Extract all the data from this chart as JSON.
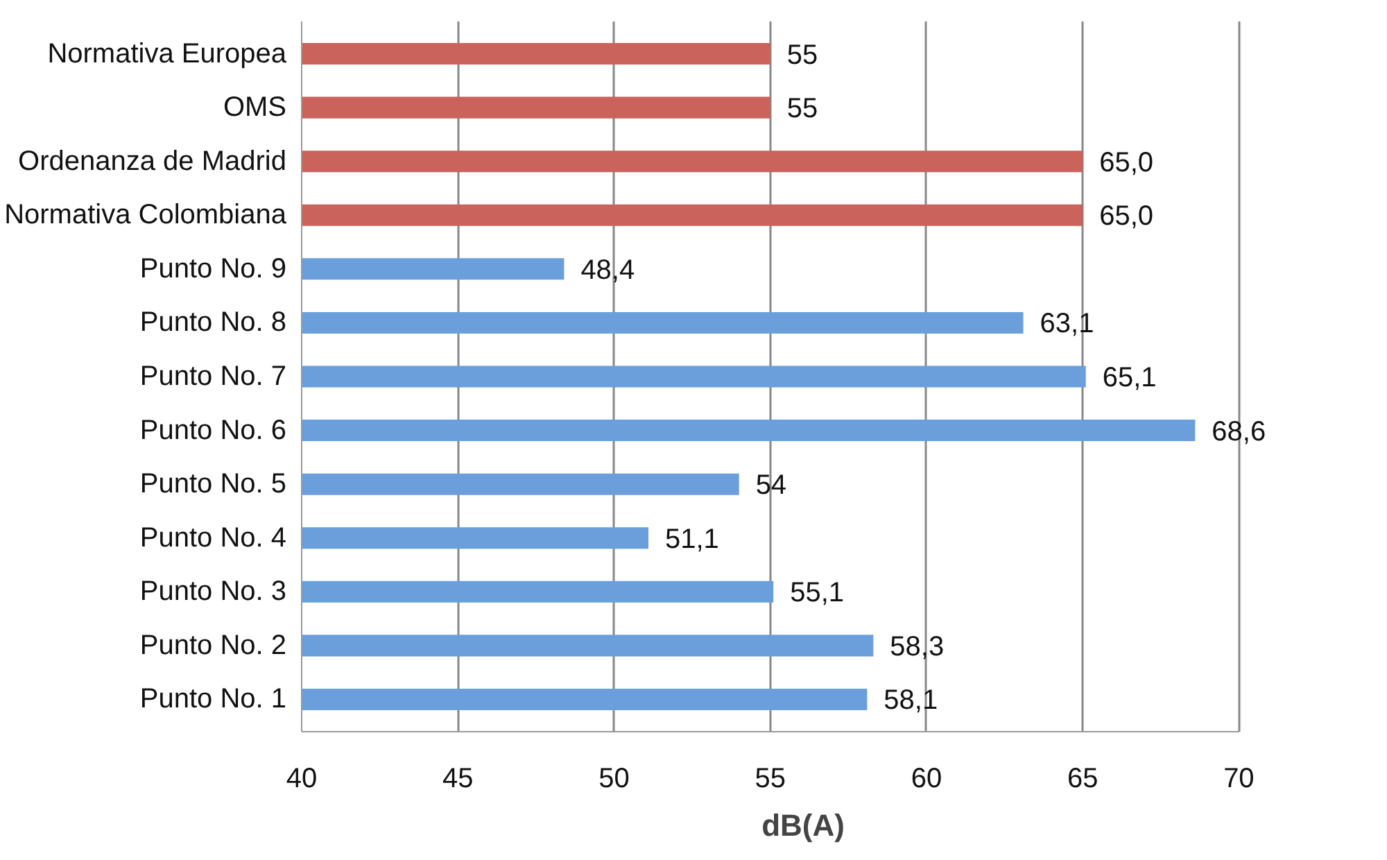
{
  "chart_data": {
    "type": "bar",
    "orientation": "horizontal",
    "xlabel": "dB(A)",
    "categories": [
      "Normativa Europea",
      "OMS",
      "Ordenanza de Madrid",
      "Normativa Colombiana",
      "Punto No. 9",
      "Punto No. 8",
      "Punto No. 7",
      "Punto No. 6",
      "Punto No. 5",
      "Punto No. 4",
      "Punto No. 3",
      "Punto No. 2",
      "Punto No. 1"
    ],
    "values": [
      55,
      55,
      65.0,
      65.0,
      48.4,
      63.1,
      65.1,
      68.6,
      54,
      51.1,
      55.1,
      58.3,
      58.1
    ],
    "value_labels": [
      "55",
      "55",
      "65,0",
      "65,0",
      "48,4",
      "63,1",
      "65,1",
      "68,6",
      "54",
      "51,1",
      "55,1",
      "58,3",
      "58,1"
    ],
    "colors": [
      "#c9635b",
      "#c9635b",
      "#c9635b",
      "#c9635b",
      "#6a9fdc",
      "#6a9fdc",
      "#6a9fdc",
      "#6a9fdc",
      "#6a9fdc",
      "#6a9fdc",
      "#6a9fdc",
      "#6a9fdc",
      "#6a9fdc"
    ],
    "xlim": [
      40,
      70
    ],
    "xticks": [
      40,
      45,
      50,
      55,
      60,
      65,
      70
    ],
    "grid": "x"
  }
}
